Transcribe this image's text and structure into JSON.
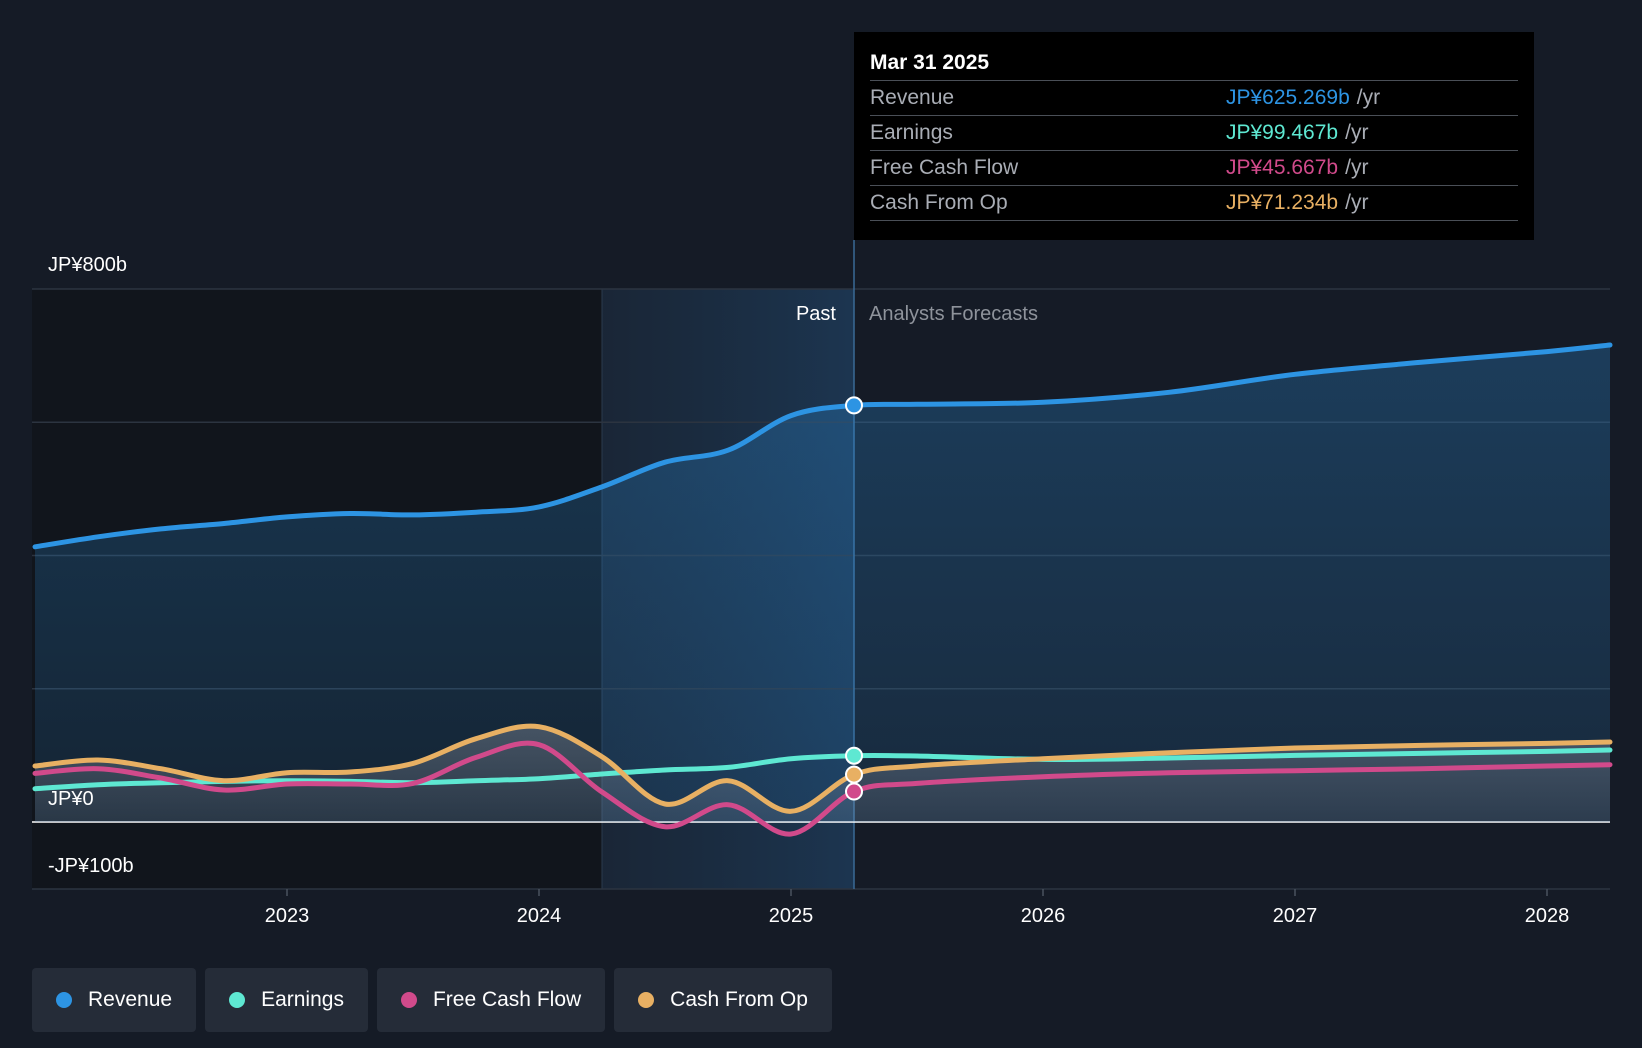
{
  "chart_data": {
    "type": "line",
    "title": "",
    "currency_unit": "JP¥ billions",
    "y_axis": {
      "labels": [
        "JP¥800b",
        "JP¥0",
        "-JP¥100b"
      ],
      "ylim": [
        -100,
        800
      ]
    },
    "x_axis": {
      "tick_labels": [
        "2023",
        "2024",
        "2025",
        "2026",
        "2027",
        "2028"
      ],
      "ticks": [
        2023,
        2024,
        2025,
        2026,
        2027,
        2028
      ],
      "xlim": [
        2021.75,
        2028.25
      ]
    },
    "regions": {
      "past_label": "Past",
      "forecast_label": "Analysts Forecasts",
      "split_x": 2025.25,
      "highlight_start_x": 2024.25
    },
    "series": [
      {
        "name": "Revenue",
        "color": "#2d94e3",
        "points": [
          [
            2022.0,
            413
          ],
          [
            2022.25,
            428
          ],
          [
            2022.5,
            440
          ],
          [
            2022.75,
            448
          ],
          [
            2023.0,
            458
          ],
          [
            2023.25,
            463
          ],
          [
            2023.5,
            461
          ],
          [
            2023.75,
            465
          ],
          [
            2024.0,
            473
          ],
          [
            2024.25,
            503
          ],
          [
            2024.5,
            540
          ],
          [
            2024.75,
            558
          ],
          [
            2025.0,
            610
          ],
          [
            2025.25,
            625.3
          ],
          [
            2025.5,
            627
          ],
          [
            2026.0,
            630
          ],
          [
            2026.5,
            645
          ],
          [
            2027.0,
            672
          ],
          [
            2027.5,
            690
          ],
          [
            2028.0,
            706
          ],
          [
            2028.25,
            716
          ]
        ]
      },
      {
        "name": "Earnings",
        "color": "#5ee8d2",
        "points": [
          [
            2022.0,
            50
          ],
          [
            2022.25,
            56
          ],
          [
            2022.5,
            59
          ],
          [
            2022.75,
            61
          ],
          [
            2023.0,
            62
          ],
          [
            2023.25,
            61
          ],
          [
            2023.5,
            59
          ],
          [
            2023.75,
            62
          ],
          [
            2024.0,
            65
          ],
          [
            2024.25,
            72
          ],
          [
            2024.5,
            78
          ],
          [
            2024.75,
            82
          ],
          [
            2025.0,
            95
          ],
          [
            2025.25,
            99.5
          ],
          [
            2025.5,
            99
          ],
          [
            2026.0,
            94
          ],
          [
            2026.5,
            96
          ],
          [
            2027.0,
            100
          ],
          [
            2027.5,
            103
          ],
          [
            2028.0,
            106
          ],
          [
            2028.25,
            108
          ]
        ]
      },
      {
        "name": "Free Cash Flow",
        "color": "#d14a8b",
        "points": [
          [
            2022.0,
            73
          ],
          [
            2022.25,
            80
          ],
          [
            2022.5,
            66
          ],
          [
            2022.75,
            48
          ],
          [
            2023.0,
            57
          ],
          [
            2023.25,
            57
          ],
          [
            2023.5,
            58
          ],
          [
            2023.75,
            97
          ],
          [
            2024.0,
            116
          ],
          [
            2024.25,
            45
          ],
          [
            2024.5,
            -7
          ],
          [
            2024.75,
            26
          ],
          [
            2025.0,
            -18
          ],
          [
            2025.25,
            45.7
          ],
          [
            2025.5,
            58
          ],
          [
            2026.0,
            68
          ],
          [
            2026.5,
            74
          ],
          [
            2027.0,
            77
          ],
          [
            2027.5,
            80
          ],
          [
            2028.0,
            84
          ],
          [
            2028.25,
            86
          ]
        ]
      },
      {
        "name": "Cash From Op",
        "color": "#e8b063",
        "points": [
          [
            2022.0,
            84
          ],
          [
            2022.25,
            93
          ],
          [
            2022.5,
            80
          ],
          [
            2022.75,
            62
          ],
          [
            2023.0,
            74
          ],
          [
            2023.25,
            75
          ],
          [
            2023.5,
            88
          ],
          [
            2023.75,
            125
          ],
          [
            2024.0,
            143
          ],
          [
            2024.25,
            98
          ],
          [
            2024.5,
            27
          ],
          [
            2024.75,
            62
          ],
          [
            2025.0,
            16
          ],
          [
            2025.25,
            71.2
          ],
          [
            2025.5,
            84
          ],
          [
            2026.0,
            95
          ],
          [
            2026.5,
            104
          ],
          [
            2027.0,
            111
          ],
          [
            2027.5,
            115
          ],
          [
            2028.0,
            118
          ],
          [
            2028.25,
            120
          ]
        ]
      }
    ]
  },
  "tooltip": {
    "date": "Mar 31 2025",
    "rows": [
      {
        "name": "Revenue",
        "value": "JP¥625.269b",
        "unit": "/yr",
        "color": "#2d94e3"
      },
      {
        "name": "Earnings",
        "value": "JP¥99.467b",
        "unit": "/yr",
        "color": "#5ee8d2"
      },
      {
        "name": "Free Cash Flow",
        "value": "JP¥45.667b",
        "unit": "/yr",
        "color": "#d14a8b"
      },
      {
        "name": "Cash From Op",
        "value": "JP¥71.234b",
        "unit": "/yr",
        "color": "#e8b063"
      }
    ]
  },
  "legend": [
    {
      "label": "Revenue",
      "color": "#2d94e3"
    },
    {
      "label": "Earnings",
      "color": "#5ee8d2"
    },
    {
      "label": "Free Cash Flow",
      "color": "#d14a8b"
    },
    {
      "label": "Cash From Op",
      "color": "#e8b063"
    }
  ]
}
